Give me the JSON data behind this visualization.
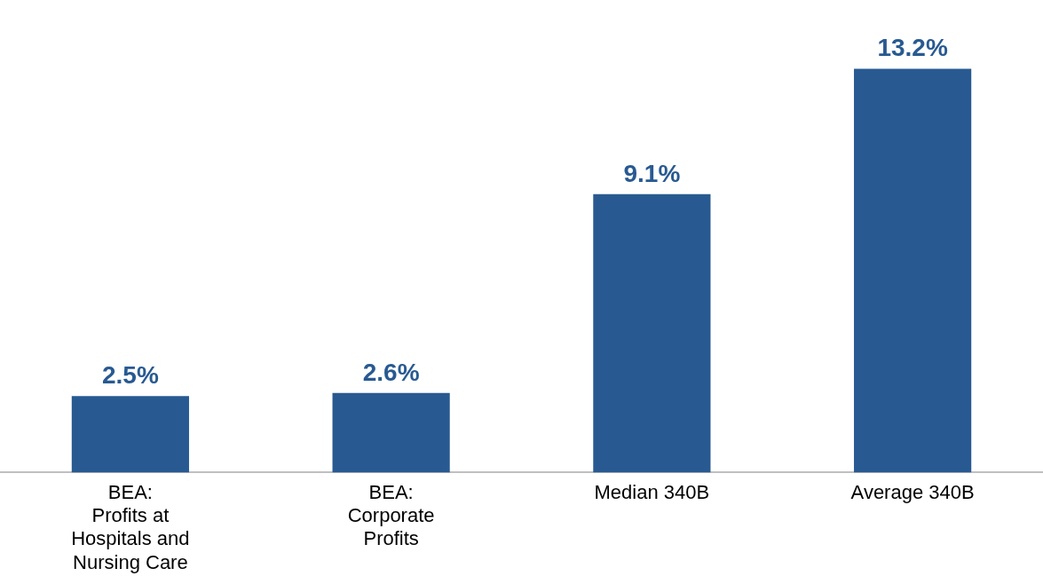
{
  "chart_data": {
    "type": "bar",
    "categories": [
      "BEA:\nProfits at\nHospitals and\nNursing Care",
      "BEA:\nCorporate\nProfits",
      "Median 340B",
      "Average 340B"
    ],
    "values": [
      2.5,
      2.6,
      9.1,
      13.2
    ],
    "value_labels": [
      "2.5%",
      "2.6%",
      "9.1%",
      "13.2%"
    ],
    "color": "#285a91",
    "grid": false,
    "legend": false
  }
}
